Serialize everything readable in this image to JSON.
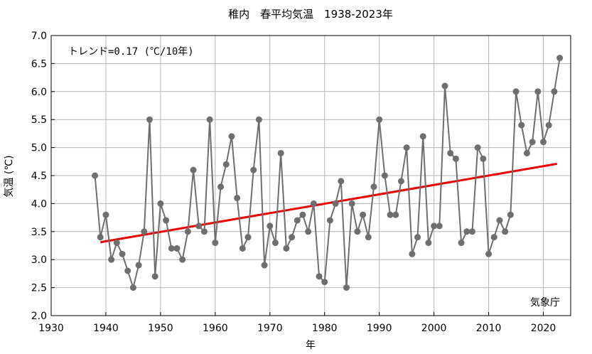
{
  "chart_data": {
    "type": "line",
    "title": "稚内　春平均気温　1938-2023年",
    "xlabel": "年",
    "ylabel": "気温 (℃)",
    "annotation": "トレンド=0.17 (℃/10年)",
    "credit": "気象庁",
    "xlim": [
      1930,
      2025
    ],
    "ylim": [
      2.0,
      7.0
    ],
    "x_ticks": [
      "1930",
      "1940",
      "1950",
      "1960",
      "1970",
      "1980",
      "1990",
      "2000",
      "2010",
      "2020"
    ],
    "y_ticks": [
      "2.0",
      "2.5",
      "3.0",
      "3.5",
      "4.0",
      "4.5",
      "5.0",
      "5.5",
      "6.0",
      "6.5",
      "7.0"
    ],
    "grid": true,
    "colors": {
      "series": "#6e6e6e",
      "trend": "#ee0000",
      "grid": "#b4b4b4"
    },
    "series": [
      {
        "years": [
          1938,
          1939,
          1940,
          1941,
          1942,
          1943,
          1944,
          1945,
          1946,
          1947,
          1948,
          1949,
          1950,
          1951,
          1952,
          1953,
          1954,
          1955,
          1956,
          1957,
          1958,
          1959,
          1960,
          1961,
          1962,
          1963,
          1964,
          1965,
          1966,
          1967,
          1968,
          1969,
          1970,
          1971,
          1972,
          1973,
          1974,
          1975,
          1976,
          1977,
          1978,
          1979,
          1980,
          1981,
          1982,
          1983,
          1984,
          1985,
          1986,
          1987,
          1988,
          1989,
          1990,
          1991,
          1992,
          1993,
          1994,
          1995,
          1996,
          1997,
          1998,
          1999,
          2000,
          2001,
          2002,
          2003,
          2004,
          2005,
          2006,
          2007,
          2008,
          2009,
          2010,
          2011,
          2012,
          2013,
          2014,
          2015,
          2016,
          2017,
          2018,
          2019,
          2020,
          2021,
          2022,
          2023
        ],
        "values": [
          4.5,
          3.4,
          3.8,
          3.0,
          3.3,
          3.1,
          2.8,
          2.5,
          2.9,
          3.5,
          5.5,
          2.7,
          4.0,
          3.7,
          3.2,
          3.2,
          3.0,
          3.5,
          4.6,
          3.6,
          3.5,
          5.5,
          3.3,
          4.3,
          4.7,
          5.2,
          4.1,
          3.2,
          3.4,
          4.6,
          5.5,
          2.9,
          3.6,
          3.3,
          4.9,
          3.2,
          3.4,
          3.7,
          3.8,
          3.5,
          4.0,
          2.7,
          2.6,
          3.7,
          4.0,
          4.4,
          2.5,
          4.0,
          3.5,
          3.8,
          3.4,
          4.3,
          5.5,
          4.5,
          3.8,
          3.8,
          4.4,
          5.0,
          3.1,
          3.4,
          5.2,
          3.3,
          3.6,
          3.6,
          6.1,
          4.9,
          4.8,
          3.3,
          3.5,
          3.5,
          5.0,
          4.8,
          3.1,
          3.4,
          3.7,
          3.5,
          3.8,
          6.0,
          5.4,
          4.9,
          5.1,
          6.0,
          5.1,
          5.4,
          6.0,
          6.6
        ]
      }
    ],
    "trend": {
      "x": [
        1939,
        2022.5
      ],
      "y": [
        3.31,
        4.71
      ]
    }
  }
}
